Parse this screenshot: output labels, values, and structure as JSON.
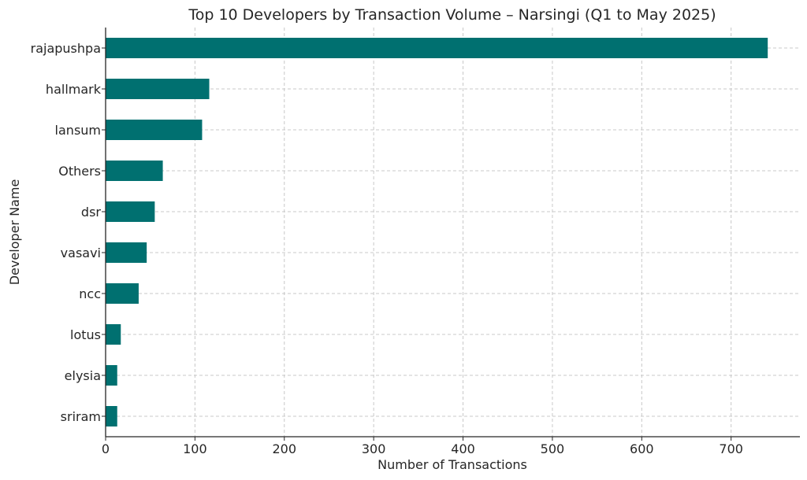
{
  "chart_data": {
    "type": "bar",
    "orientation": "horizontal",
    "title": "Top 10 Developers by Transaction Volume – Narsingi (Q1 to May 2025)",
    "xlabel": "Number of Transactions",
    "ylabel": "Developer Name",
    "categories": [
      "rajapushpa",
      "hallmark",
      "lansum",
      "Others",
      "dsr",
      "vasavi",
      "ncc",
      "lotus",
      "elysia",
      "sriram"
    ],
    "values": [
      741,
      116,
      108,
      64,
      55,
      46,
      37,
      17,
      13,
      13
    ],
    "xlim": [
      0,
      777
    ],
    "xticks": [
      0,
      100,
      200,
      300,
      400,
      500,
      600,
      700
    ],
    "grid": true,
    "bar_color": "#007070"
  }
}
